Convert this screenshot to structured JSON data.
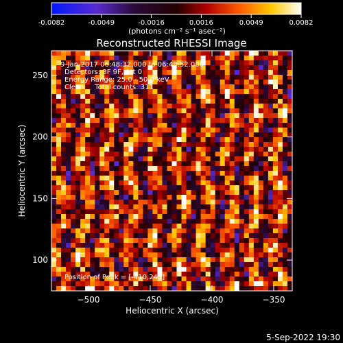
{
  "colorbar": {
    "ticks": [
      "-0.0082",
      "-0.0049",
      "-0.0016",
      "0.0016",
      "0.0049",
      "0.0082"
    ],
    "units": "(photons cm⁻² s⁻¹ asec⁻²)",
    "vmin": -0.0082,
    "vmax": 0.0082
  },
  "chart_data": {
    "type": "heatmap",
    "title": "Reconstructed RHESSI Image",
    "xlabel": "Heliocentric X (arcsec)",
    "ylabel": "Heliocentric Y (arcsec)",
    "xlim": [
      -530,
      -335
    ],
    "ylim": [
      75,
      270
    ],
    "xticks": [
      -500,
      -450,
      -400,
      -350
    ],
    "yticks": [
      100,
      150,
      200,
      250
    ],
    "xtick_labels": [
      "−500",
      "−450",
      "−400",
      "−350"
    ],
    "ytick_labels": [
      "100",
      "150",
      "200",
      "250"
    ],
    "annotations": [
      "9-Jan-2017 06:48:32.000 to 06:48:52.000",
      "Detectors: 3F 9F, Att 0",
      "Energy Range: 25.0 - 50.0 keV",
      "Clean     Total counts: 311"
    ],
    "peak_label": "Position of Peak = [-410,245]",
    "peak": [
      -410,
      245
    ],
    "colormap": "black-purple-red-orange-yellow-white (negative values shown in blue)"
  },
  "footer": {
    "timestamp": "5-Sep-2022 19:30"
  }
}
